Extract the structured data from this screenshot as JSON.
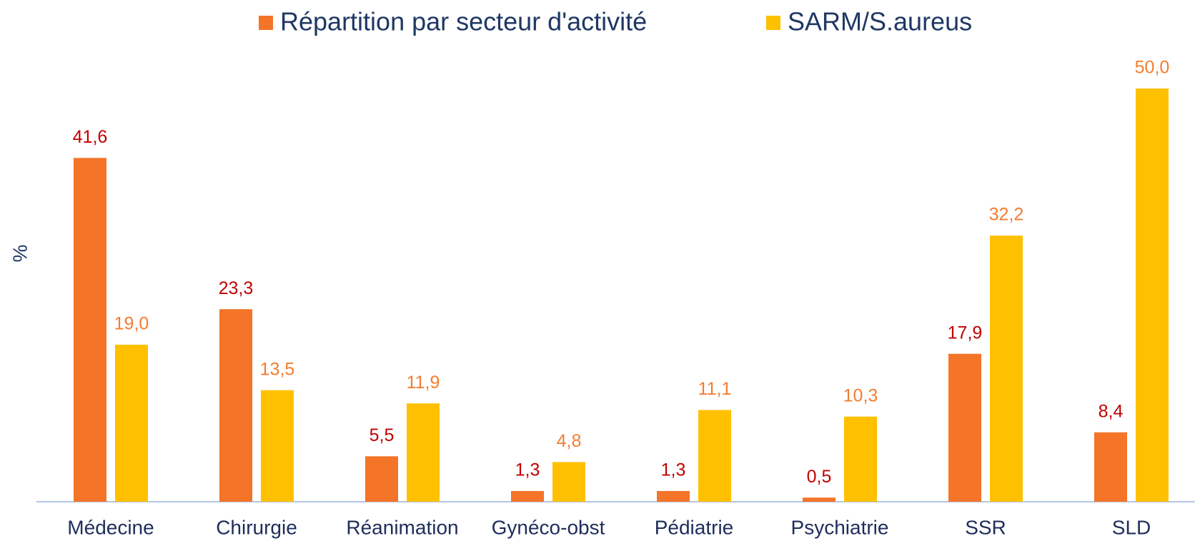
{
  "chart_data": {
    "type": "bar",
    "ylabel": "%",
    "categories": [
      "Médecine",
      "Chirurgie",
      "Réanimation",
      "Gynéco-obst",
      "Pédiatrie",
      "Psychiatrie",
      "SSR",
      "SLD"
    ],
    "series": [
      {
        "name": "Répartition par secteur d'activité",
        "color": "#f47428",
        "label_color": "#c00000",
        "values": [
          41.6,
          23.3,
          5.5,
          1.3,
          1.3,
          0.5,
          17.9,
          8.4
        ],
        "value_labels": [
          "41,6",
          "23,3",
          "5,5",
          "1,3",
          "1,3",
          "0,5",
          "17,9",
          "8,4"
        ]
      },
      {
        "name": "SARM/S.aureus",
        "color": "#ffc000",
        "label_color": "#f47c30",
        "values": [
          19.0,
          13.5,
          11.9,
          4.8,
          11.1,
          10.3,
          32.2,
          50.0
        ],
        "value_labels": [
          "19,0",
          "13,5",
          "11,9",
          "4,8",
          "11,1",
          "10,3",
          "32,2",
          "50,0"
        ]
      }
    ],
    "legend": "top"
  }
}
